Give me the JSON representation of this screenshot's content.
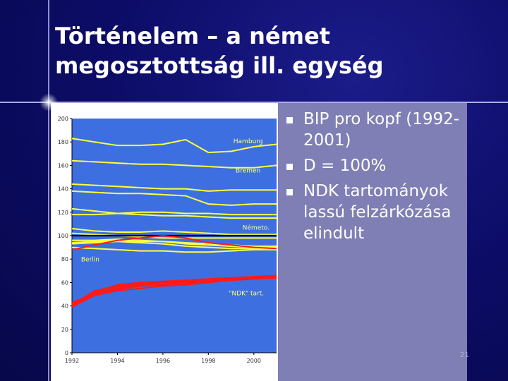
{
  "slide": {
    "title_line1": "Történelem – a német",
    "title_line2": "megosztottság ill. egység",
    "page_number": "21"
  },
  "bullets": [
    {
      "text": "BIP pro kopf (1992-2001)"
    },
    {
      "text": "D = 100%"
    },
    {
      "text": "NDK tartományok lassú felzárkózása elindult"
    }
  ],
  "chart_data": {
    "type": "line",
    "title": "",
    "xlabel": "",
    "ylabel": "",
    "ylim": [
      0,
      200
    ],
    "xlim": [
      1992,
      2001
    ],
    "yticks": [
      "0",
      "20",
      "40",
      "60",
      "80",
      "100",
      "120",
      "140",
      "160",
      "180",
      "200"
    ],
    "xticks": [
      "1992",
      "1994",
      "1996",
      "1998",
      "2000"
    ],
    "grid": false,
    "background": "#3d6fe0",
    "annotations": [
      "Hamburg",
      "Bremen",
      "Németo.",
      "Berlin",
      "\"NDK\" tart."
    ],
    "x": [
      1992,
      1993,
      1994,
      1995,
      1996,
      1997,
      1998,
      1999,
      2000,
      2001
    ],
    "series": [
      {
        "color": "#ffff40",
        "values": [
          183,
          180,
          177,
          177,
          178,
          182,
          171,
          172,
          176,
          178
        ]
      },
      {
        "color": "#ffff40",
        "values": [
          164,
          163,
          162,
          161,
          161,
          160,
          159,
          158,
          158,
          160
        ]
      },
      {
        "color": "#ffff40",
        "values": [
          144,
          143,
          142,
          141,
          140,
          140,
          138,
          139,
          139,
          139
        ]
      },
      {
        "color": "#ffff40",
        "values": [
          138,
          137,
          136,
          136,
          135,
          134,
          127,
          126,
          127,
          127
        ]
      },
      {
        "color": "#ffff40",
        "values": [
          123,
          121,
          119,
          118,
          117,
          117,
          116,
          115,
          115,
          115
        ]
      },
      {
        "color": "#ffff40",
        "values": [
          118,
          118,
          119,
          120,
          120,
          119,
          119,
          118,
          118,
          118
        ]
      },
      {
        "color": "#ffff40",
        "values": [
          106,
          104,
          103,
          103,
          104,
          103,
          102,
          101,
          101,
          101
        ]
      },
      {
        "color": "#ffff40",
        "values": [
          102,
          101,
          100,
          99,
          98,
          98,
          98,
          98,
          98,
          98
        ]
      },
      {
        "color": "#ffff40",
        "values": [
          96,
          96,
          97,
          96,
          95,
          94,
          93,
          92,
          91,
          91
        ]
      },
      {
        "color": "#ffff40",
        "values": [
          94,
          95,
          96,
          95,
          95,
          93,
          92,
          91,
          90,
          90
        ]
      },
      {
        "color": "#ffff40",
        "values": [
          93,
          94,
          95,
          94,
          93,
          91,
          90,
          89,
          89,
          89
        ]
      },
      {
        "color": "#ffff40",
        "values": [
          90,
          89,
          88,
          87,
          87,
          86,
          86,
          87,
          88,
          88
        ]
      },
      {
        "color": "#000000",
        "values": [
          100,
          100,
          100,
          100,
          100,
          100,
          100,
          100,
          100,
          100
        ]
      },
      {
        "color": "#ff1a1a",
        "values": [
          88,
          92,
          96,
          98,
          100,
          98,
          94,
          92,
          90,
          89
        ]
      },
      {
        "color": "#ff1a1a",
        "values": [
          40,
          52,
          58,
          60,
          61,
          62,
          63,
          64,
          65,
          66
        ]
      },
      {
        "color": "#ff1a1a",
        "values": [
          41,
          53,
          57,
          59,
          60,
          61,
          62,
          63,
          64,
          65
        ]
      },
      {
        "color": "#ff1a1a",
        "values": [
          42,
          51,
          56,
          58,
          59,
          60,
          62,
          63,
          64,
          65
        ]
      },
      {
        "color": "#ff1a1a",
        "values": [
          39,
          49,
          53,
          55,
          57,
          58,
          60,
          62,
          64,
          65
        ]
      },
      {
        "color": "#ff1a1a",
        "values": [
          40,
          50,
          54,
          57,
          58,
          59,
          61,
          62,
          63,
          64
        ]
      },
      {
        "color": "#ff1a1a",
        "values": [
          43,
          50,
          55,
          58,
          58,
          60,
          61,
          62,
          63,
          64
        ]
      }
    ]
  }
}
